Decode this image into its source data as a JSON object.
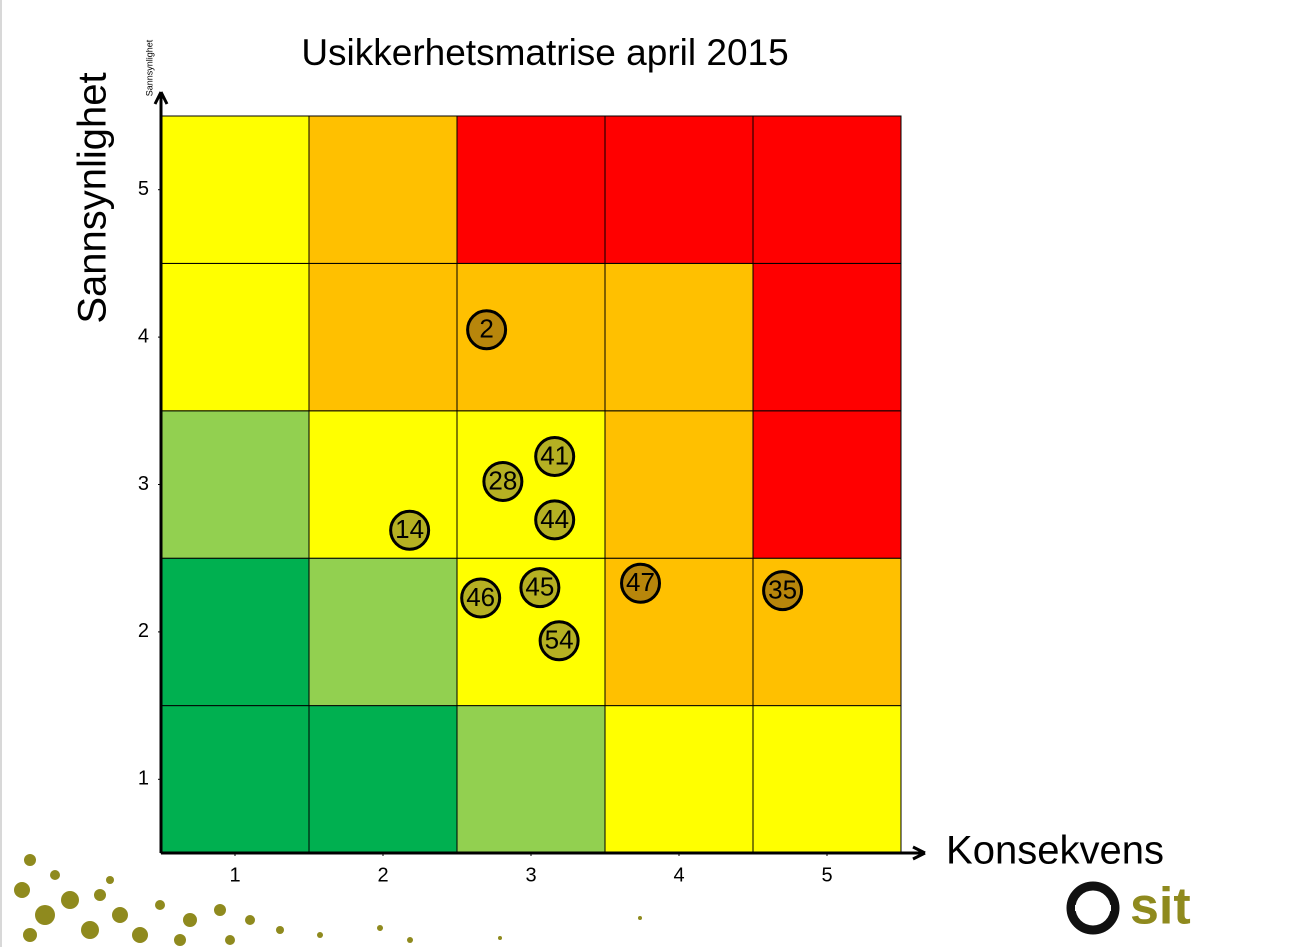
{
  "chart_data": {
    "type": "risk-matrix",
    "title": "Usikkerhetsmatrise april 2015",
    "xlabel": "Konsekvens",
    "ylabel": "Sannsynlighet",
    "ylabel_small": "Sannsynlighet",
    "xlim": [
      0.5,
      5.5
    ],
    "ylim": [
      0.5,
      5.5
    ],
    "xticks": [
      1,
      2,
      3,
      4,
      5
    ],
    "yticks": [
      1,
      2,
      3,
      4,
      5
    ],
    "cell_colors": [
      [
        "#00b050",
        "#00b050",
        "#92d050",
        "#ffff00",
        "#ffff00"
      ],
      [
        "#00b050",
        "#92d050",
        "#ffff00",
        "#ffc000",
        "#ffc000"
      ],
      [
        "#92d050",
        "#ffff00",
        "#ffff00",
        "#ffc000",
        "#ff0000"
      ],
      [
        "#ffff00",
        "#ffc000",
        "#ffc000",
        "#ffc000",
        "#ff0000"
      ],
      [
        "#ffff00",
        "#ffc000",
        "#ff0000",
        "#ff0000",
        "#ff0000"
      ]
    ],
    "points": [
      {
        "label": "2",
        "x": 2.7,
        "y": 4.05,
        "color": "#b8860b"
      },
      {
        "label": "41",
        "x": 3.16,
        "y": 3.19,
        "color": "#b5b022"
      },
      {
        "label": "28",
        "x": 2.81,
        "y": 3.02,
        "color": "#b5b022"
      },
      {
        "label": "14",
        "x": 2.18,
        "y": 2.69,
        "color": "#b5b022"
      },
      {
        "label": "44",
        "x": 3.16,
        "y": 2.76,
        "color": "#b5b022"
      },
      {
        "label": "46",
        "x": 2.66,
        "y": 2.23,
        "color": "#b5b022"
      },
      {
        "label": "45",
        "x": 3.06,
        "y": 2.3,
        "color": "#b5b022"
      },
      {
        "label": "54",
        "x": 3.19,
        "y": 1.94,
        "color": "#b5b022"
      },
      {
        "label": "47",
        "x": 3.74,
        "y": 2.33,
        "color": "#b8860b"
      },
      {
        "label": "35",
        "x": 4.7,
        "y": 2.28,
        "color": "#b8860b"
      }
    ]
  },
  "logo_text": "sit"
}
